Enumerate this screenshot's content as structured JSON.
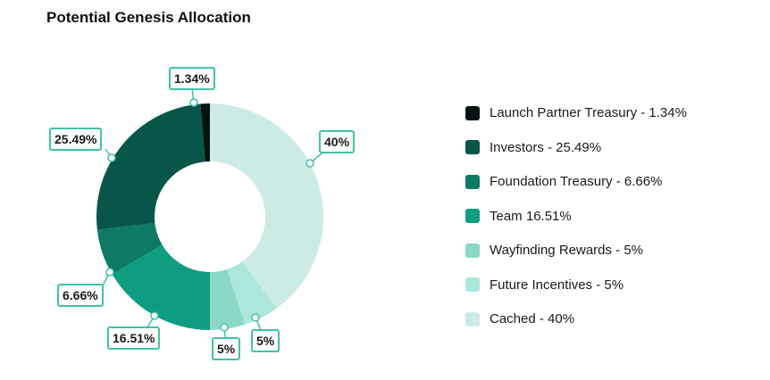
{
  "chart_data": {
    "type": "pie",
    "title": "Potential Genesis Allocation",
    "legend_position": "right",
    "slices": [
      {
        "name": "Launch Partner Treasury",
        "value": 1.34,
        "label": "1.34%",
        "legend": "Launch Partner Treasury - 1.34%",
        "color": "#031311"
      },
      {
        "name": "Investors",
        "value": 25.49,
        "label": "25.49%",
        "legend": "Investors - 25.49%",
        "color": "#085649"
      },
      {
        "name": "Foundation Treasury",
        "value": 6.66,
        "label": "6.66%",
        "legend": "Foundation Treasury - 6.66%",
        "color": "#0e7a66"
      },
      {
        "name": "Team",
        "value": 16.51,
        "label": "16.51%",
        "legend": "Team 16.51%",
        "color": "#0f9d81"
      },
      {
        "name": "Wayfinding Rewards",
        "value": 5,
        "label": "5%",
        "legend": "Wayfinding Rewards - 5%",
        "color": "#8bd8c6"
      },
      {
        "name": "Future Incentives",
        "value": 5,
        "label": "5%",
        "legend": "Future Incentives - 5%",
        "color": "#ade6da"
      },
      {
        "name": "Cached",
        "value": 40,
        "label": "40%",
        "legend": "Cached - 40%",
        "color": "#cdebe5"
      }
    ]
  }
}
